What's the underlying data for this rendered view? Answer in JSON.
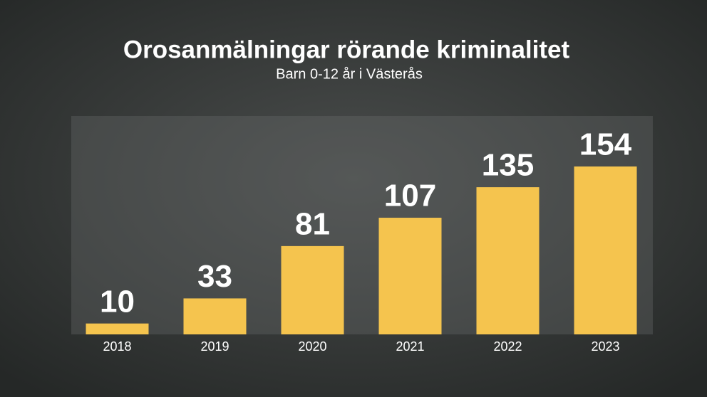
{
  "chart_data": {
    "type": "bar",
    "title": "Orosanmälningar rörande kriminalitet",
    "subtitle": "Barn 0-12 år i Västerås",
    "categories": [
      "2018",
      "2019",
      "2020",
      "2021",
      "2022",
      "2023"
    ],
    "values": [
      10,
      33,
      81,
      107,
      135,
      154
    ],
    "color": "#f5c44e"
  }
}
